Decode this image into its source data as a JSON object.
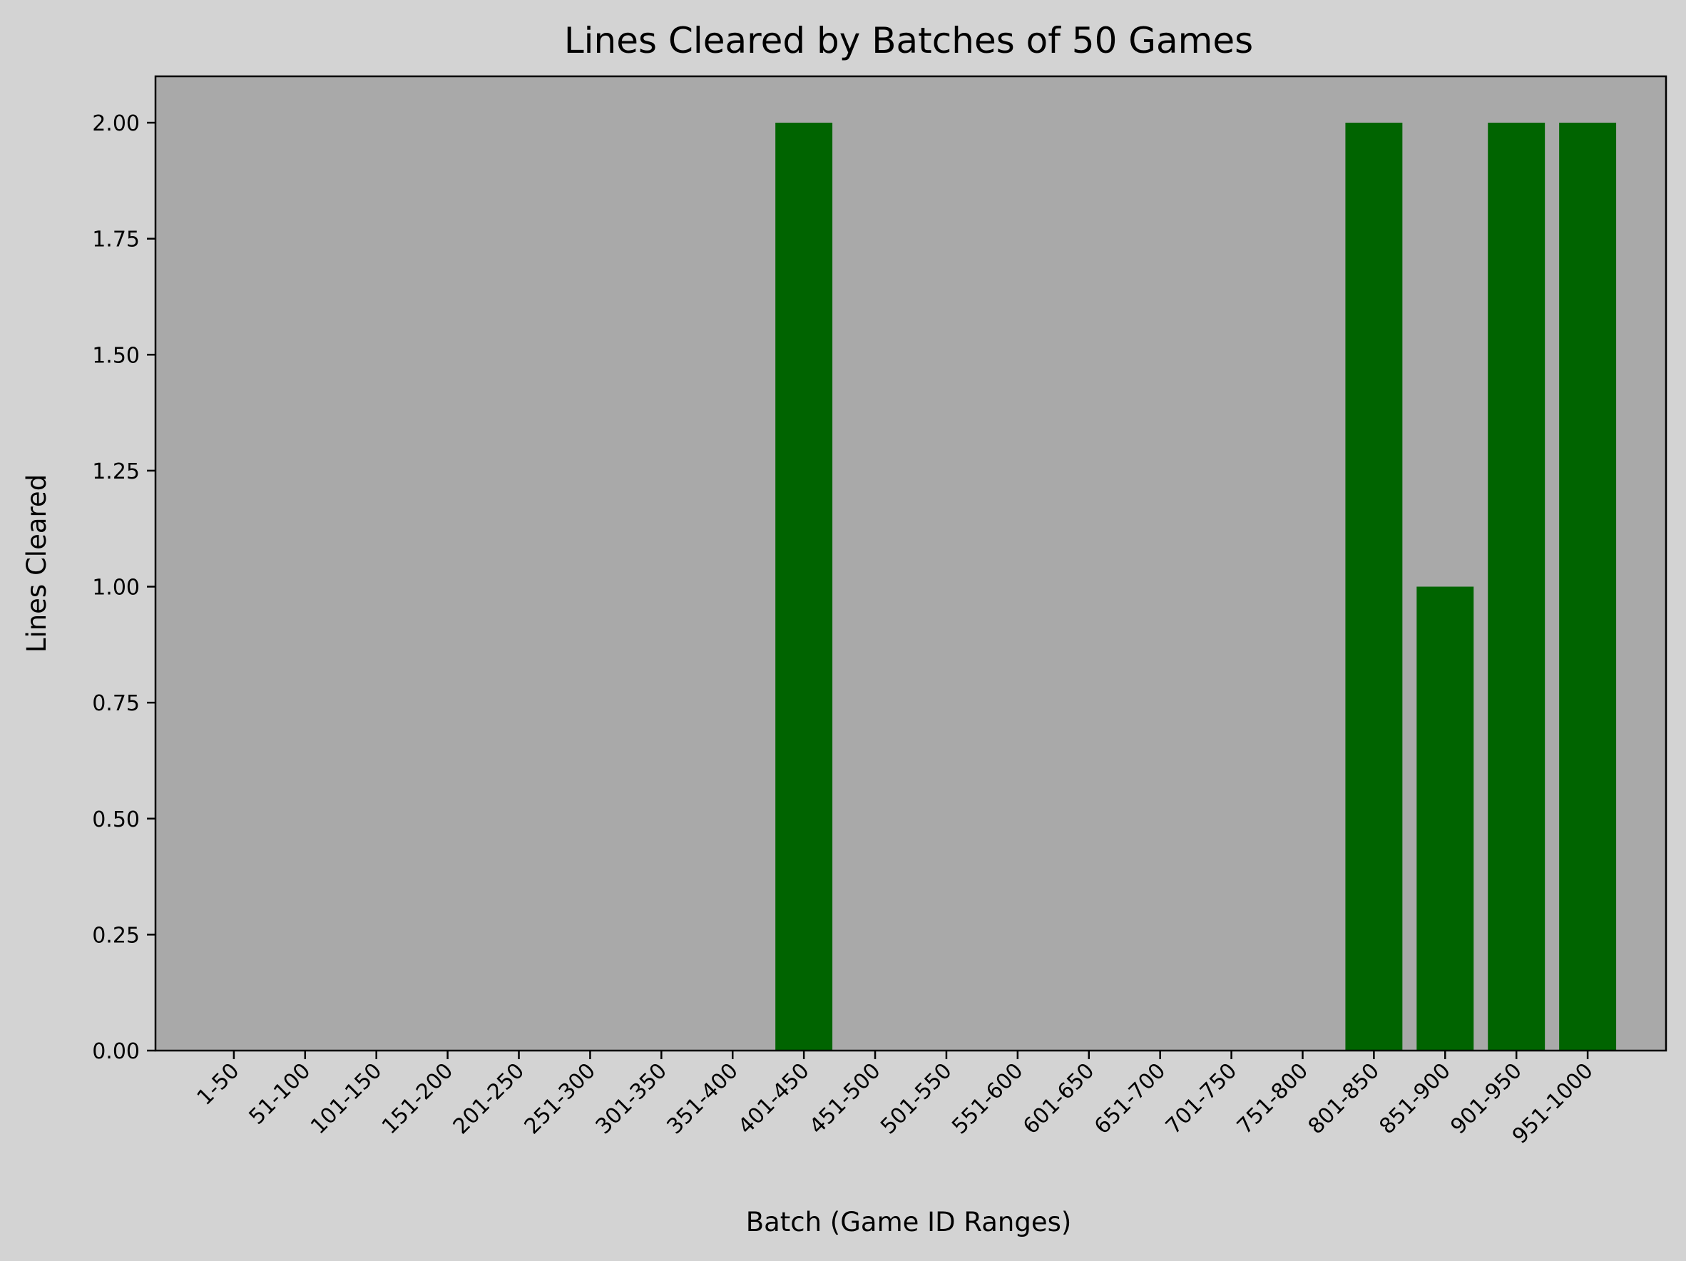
{
  "colors": {
    "figure_bg": "#d3d3d3",
    "axes_bg": "#a9a9a9",
    "bar": "#006400",
    "text": "#000000"
  },
  "chart_data": {
    "type": "bar",
    "title": "Lines Cleared by Batches of 50 Games",
    "xlabel": "Batch (Game ID Ranges)",
    "ylabel": "Lines Cleared",
    "categories": [
      "1-50",
      "51-100",
      "101-150",
      "151-200",
      "201-250",
      "251-300",
      "301-350",
      "351-400",
      "401-450",
      "451-500",
      "501-550",
      "551-600",
      "601-650",
      "651-700",
      "701-750",
      "751-800",
      "801-850",
      "851-900",
      "901-950",
      "951-1000"
    ],
    "values": [
      0,
      0,
      0,
      0,
      0,
      0,
      0,
      0,
      2,
      0,
      0,
      0,
      0,
      0,
      0,
      0,
      2,
      1,
      2,
      2
    ],
    "ylim": [
      0,
      2.1
    ],
    "yticks": [
      "0.00",
      "0.25",
      "0.50",
      "0.75",
      "1.00",
      "1.25",
      "1.50",
      "1.75",
      "2.00"
    ],
    "ytick_values": [
      0,
      0.25,
      0.5,
      0.75,
      1,
      1.25,
      1.5,
      1.75,
      2
    ],
    "grid": false,
    "legend": "none"
  }
}
